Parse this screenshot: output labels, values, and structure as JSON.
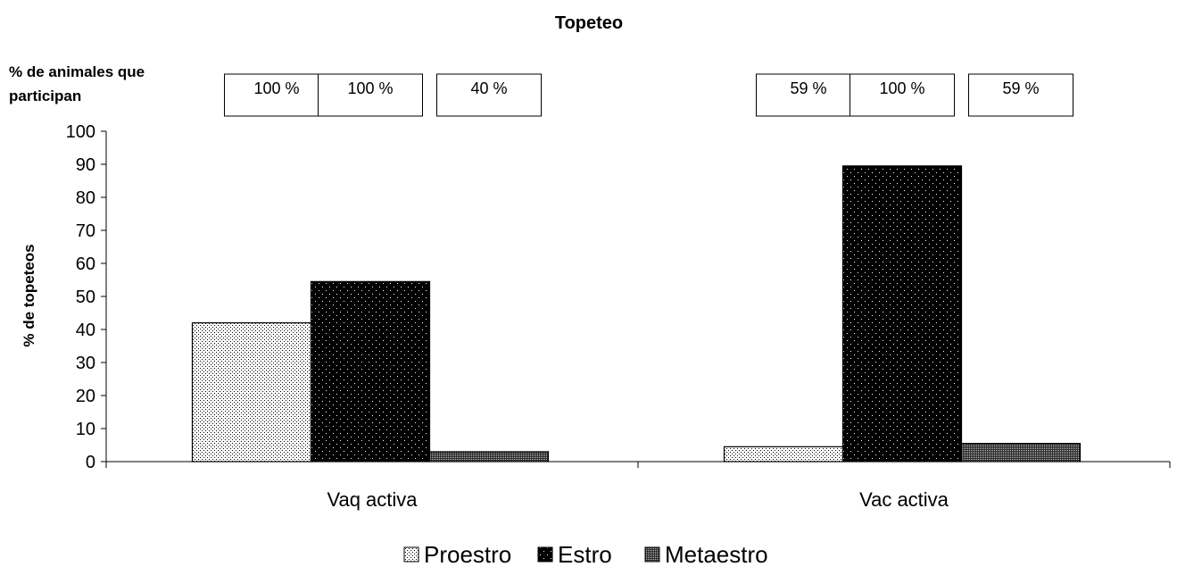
{
  "chart_data": {
    "type": "bar",
    "title": "Topeteo",
    "annotation_label": [
      "% de animales que",
      "participan"
    ],
    "ylabel": "% de topeteos",
    "xlabel": "",
    "ylim": [
      0,
      100
    ],
    "yticks": [
      "0",
      "10",
      "20",
      "30",
      "40",
      "50",
      "60",
      "70",
      "80",
      "90",
      "100"
    ],
    "categories": [
      "Vaq  activa",
      "Vac activa"
    ],
    "series": [
      {
        "name": "Proestro",
        "values": [
          42,
          4.5
        ],
        "participation": [
          "100 %",
          "59 %"
        ],
        "pattern": "light-dots",
        "color": "#ffffff"
      },
      {
        "name": "Estro",
        "values": [
          54.5,
          89.5
        ],
        "participation": [
          "100 %",
          "100 %"
        ],
        "pattern": "black-dots",
        "color": "#000000"
      },
      {
        "name": "Metaestro",
        "values": [
          3,
          5.5
        ],
        "participation": [
          "40 %",
          "59 %"
        ],
        "pattern": "dense-dots",
        "color": "#555555"
      }
    ],
    "legend_position": "bottom-center",
    "grid": false
  }
}
